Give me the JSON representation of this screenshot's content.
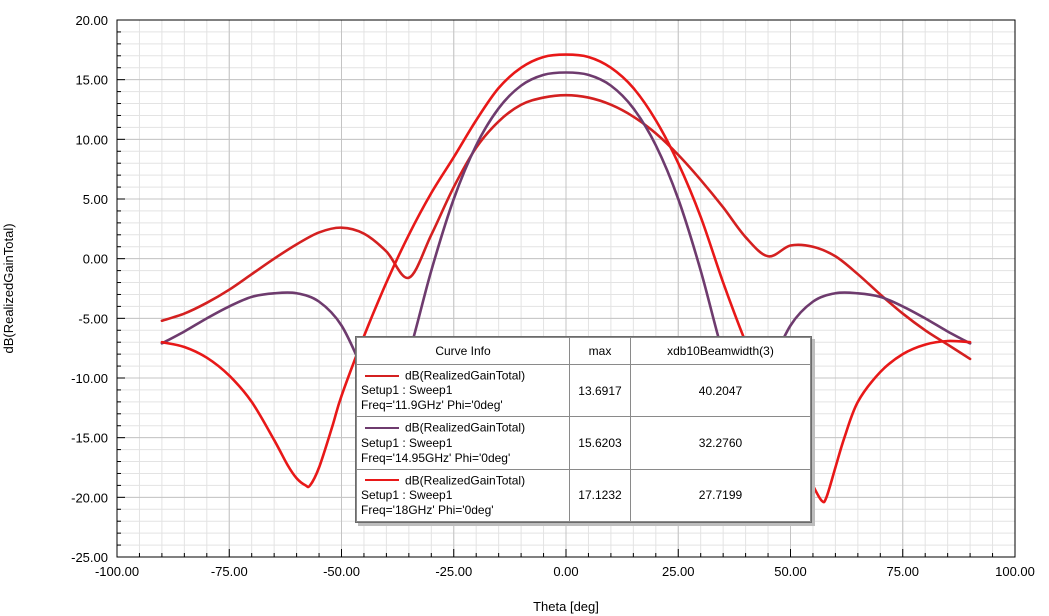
{
  "chart_data": {
    "type": "line",
    "xlabel": "Theta [deg]",
    "ylabel": "dB(RealizedGainTotal)",
    "xlim": [
      -100,
      100
    ],
    "ylim": [
      -25,
      20
    ],
    "x_ticks": [
      "-100.00",
      "-75.00",
      "-50.00",
      "-25.00",
      "0.00",
      "25.00",
      "50.00",
      "75.00",
      "100.00"
    ],
    "y_ticks": [
      "20.00",
      "15.00",
      "10.00",
      "5.00",
      "0.00",
      "-5.00",
      "-10.00",
      "-15.00",
      "-20.00",
      "-25.00"
    ],
    "grid": true,
    "series": [
      {
        "name": "dB(RealizedGainTotal)",
        "setup": "Setup1 : Sweep1",
        "freq": "Freq='11.9GHz' Phi='0deg'",
        "color": "#d42020",
        "max": "13.6917",
        "beamwidth": "40.2047",
        "x": [
          -90,
          -85,
          -80,
          -75,
          -70,
          -65,
          -60,
          -55,
          -50,
          -45,
          -40,
          -35,
          -30,
          -25,
          -20,
          -15,
          -10,
          -5,
          0,
          5,
          10,
          15,
          20,
          25,
          30,
          35,
          40,
          45,
          50,
          55,
          60,
          65,
          70,
          75,
          80,
          85,
          90
        ],
        "y": [
          -5.2,
          -4.6,
          -3.7,
          -2.6,
          -1.3,
          0.0,
          1.2,
          2.2,
          2.6,
          2.1,
          0.6,
          -1.6,
          2.0,
          6.0,
          9.3,
          11.5,
          12.9,
          13.5,
          13.7,
          13.5,
          12.9,
          11.9,
          10.5,
          8.7,
          6.6,
          4.3,
          1.8,
          0.2,
          1.1,
          1.0,
          0.2,
          -1.3,
          -3.0,
          -4.6,
          -6.0,
          -7.2,
          -8.4
        ]
      },
      {
        "name": "dB(RealizedGainTotal)",
        "setup": "Setup1 : Sweep1",
        "freq": "Freq='14.95GHz' Phi='0deg'",
        "color": "#6e3b6e",
        "max": "15.6203",
        "beamwidth": "32.2760",
        "x": [
          -90,
          -85,
          -80,
          -75,
          -70,
          -65,
          -60,
          -55,
          -50,
          -45,
          -40,
          -35,
          -30,
          -25,
          -20,
          -15,
          -10,
          -5,
          0,
          5,
          10,
          15,
          20,
          25,
          30,
          35,
          40,
          45,
          50,
          55,
          60,
          65,
          70,
          75,
          80,
          85,
          90
        ],
        "y": [
          -7.1,
          -6.1,
          -5.0,
          -4.0,
          -3.2,
          -2.9,
          -2.9,
          -3.6,
          -5.6,
          -9.5,
          -13.5,
          -8.0,
          -1.0,
          5.0,
          9.5,
          12.6,
          14.5,
          15.4,
          15.6,
          15.4,
          14.5,
          12.6,
          9.5,
          5.0,
          -1.0,
          -8.0,
          -13.5,
          -9.5,
          -5.6,
          -3.6,
          -2.9,
          -2.9,
          -3.2,
          -4.0,
          -5.0,
          -6.1,
          -7.1
        ]
      },
      {
        "name": "dB(RealizedGainTotal)",
        "setup": "Setup1 : Sweep1",
        "freq": "Freq='18GHz' Phi='0deg'",
        "color": "#e81818",
        "max": "17.1232",
        "beamwidth": "27.7199",
        "x": [
          -90,
          -85,
          -80,
          -75,
          -70,
          -65,
          -62,
          -60,
          -58,
          -57,
          -55,
          -52,
          -50,
          -45,
          -40,
          -35,
          -30,
          -25,
          -20,
          -15,
          -10,
          -5,
          0,
          5,
          10,
          15,
          20,
          25,
          30,
          35,
          40,
          45,
          50,
          52,
          55,
          57,
          58,
          60,
          62,
          65,
          70,
          75,
          80,
          85,
          90
        ],
        "y": [
          -7.0,
          -7.4,
          -8.3,
          -9.8,
          -12.0,
          -15.2,
          -17.3,
          -18.4,
          -19.0,
          -19.0,
          -17.5,
          -14.0,
          -11.5,
          -6.5,
          -2.0,
          2.0,
          5.5,
          8.5,
          11.6,
          14.3,
          16.0,
          16.9,
          17.1,
          16.9,
          16.0,
          14.3,
          11.6,
          8.0,
          3.5,
          -2.0,
          -7.0,
          -11.5,
          -14.5,
          -16.5,
          -19.0,
          -20.3,
          -20.0,
          -17.5,
          -15.0,
          -12.0,
          -9.5,
          -8.0,
          -7.2,
          -6.9,
          -7.0
        ]
      }
    ],
    "table": {
      "headers": [
        "Curve Info",
        "max",
        "xdb10Beamwidth(3)"
      ]
    }
  }
}
